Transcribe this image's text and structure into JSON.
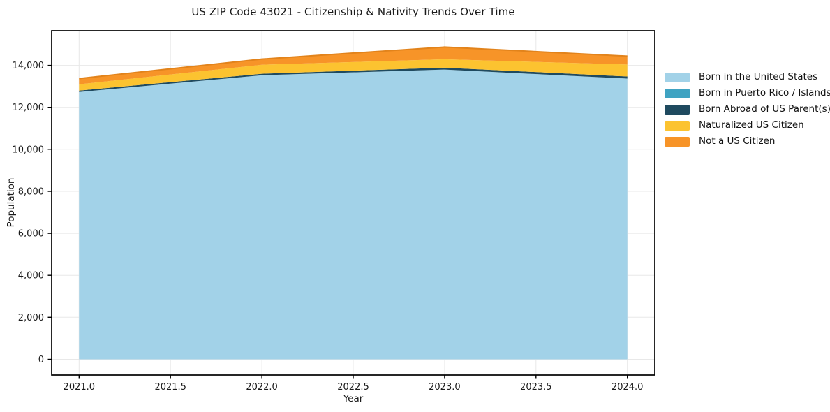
{
  "title": "US ZIP Code 43021 - Citizenship & Nativity Trends Over Time",
  "axes": {
    "xlabel": "Year",
    "ylabel": "Population",
    "x_tick_labels": [
      "2021.0",
      "2021.5",
      "2022.0",
      "2022.5",
      "2023.0",
      "2023.5",
      "2024.0"
    ],
    "y_tick_labels": [
      "0",
      "2,000",
      "4,000",
      "6,000",
      "8,000",
      "10,000",
      "12,000",
      "14,000"
    ]
  },
  "chart_data": {
    "type": "area",
    "stacked": true,
    "title": "US ZIP Code 43021 - Citizenship & Nativity Trends Over Time",
    "xlabel": "Year",
    "ylabel": "Population",
    "x": [
      2021,
      2022,
      2023,
      2024
    ],
    "series": [
      {
        "name": "Born in the United States",
        "color": "#a2d2e8",
        "values": [
          12730,
          13530,
          13800,
          13370
        ]
      },
      {
        "name": "Born in Puerto Rico / Islands",
        "color": "#3fa3c2",
        "values": [
          0,
          0,
          0,
          0
        ]
      },
      {
        "name": "Born Abroad of US Parent(s)",
        "color": "#1f4a5f",
        "values": [
          70,
          70,
          90,
          100
        ]
      },
      {
        "name": "Naturalized US Citizen",
        "color": "#fcc330",
        "values": [
          300,
          430,
          400,
          570
        ]
      },
      {
        "name": "Not a US Citizen",
        "color": "#f79428",
        "edge_color": "#e2831b",
        "values": [
          270,
          270,
          580,
          400
        ]
      }
    ],
    "x_ticks": [
      2021,
      2021.5,
      2022,
      2022.5,
      2023,
      2023.5,
      2024
    ],
    "y_ticks": [
      0,
      2000,
      4000,
      6000,
      8000,
      10000,
      12000,
      14000
    ],
    "xlim": [
      2020.85,
      2024.15
    ],
    "ylim": [
      -750,
      15650
    ],
    "grid": true,
    "grid_color": "#e8e8e8",
    "spine_color": "#000000",
    "tick_label_color": "#1a1a1a",
    "legend_position": "right"
  }
}
